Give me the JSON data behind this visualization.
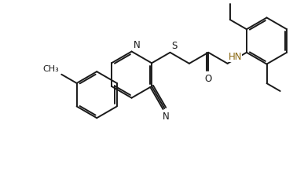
{
  "bg": "#ffffff",
  "lc": "#1a1a1a",
  "lw": 1.4,
  "fs": 8.5,
  "fig_w": 3.87,
  "fig_h": 2.19,
  "dpi": 100,
  "xlim": [
    0,
    10
  ],
  "ylim": [
    -0.5,
    5.5
  ]
}
